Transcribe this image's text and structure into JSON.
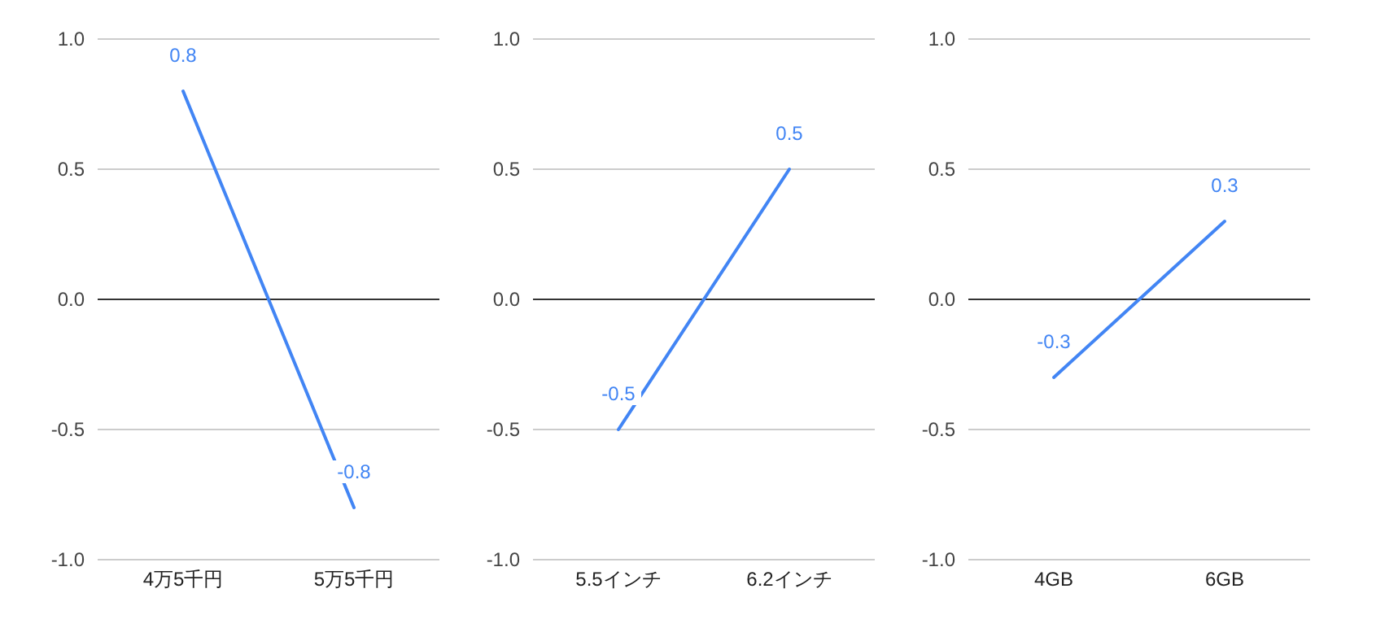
{
  "chart_data": [
    {
      "type": "line",
      "categories": [
        "4万5千円",
        "5万5千円"
      ],
      "series": [
        {
          "color": "#4285f4",
          "values": [
            0.8,
            -0.8
          ]
        }
      ],
      "ylim": [
        -1,
        1
      ],
      "yticks": [
        {
          "value": 1,
          "label": "1.0"
        },
        {
          "value": 0.5,
          "label": "0.5"
        },
        {
          "value": 0,
          "label": "0.0"
        },
        {
          "value": -0.5,
          "label": "-0.5"
        },
        {
          "value": -1,
          "label": "-1.0"
        }
      ],
      "grid": "y",
      "data_labels": true,
      "ref_lines": [
        {
          "axis": "y",
          "value": 0,
          "color": "#333333"
        }
      ]
    },
    {
      "type": "line",
      "categories": [
        "5.5インチ",
        "6.2インチ"
      ],
      "series": [
        {
          "color": "#4285f4",
          "values": [
            -0.5,
            0.5
          ]
        }
      ],
      "ylim": [
        -1,
        1
      ],
      "yticks": [
        {
          "value": 1,
          "label": "1.0"
        },
        {
          "value": 0.5,
          "label": "0.5"
        },
        {
          "value": 0,
          "label": "0.0"
        },
        {
          "value": -0.5,
          "label": "-0.5"
        },
        {
          "value": -1,
          "label": "-1.0"
        }
      ],
      "grid": "y",
      "data_labels": true,
      "ref_lines": [
        {
          "axis": "y",
          "value": 0,
          "color": "#333333"
        }
      ]
    },
    {
      "type": "line",
      "categories": [
        "4GB",
        "6GB"
      ],
      "series": [
        {
          "color": "#4285f4",
          "values": [
            -0.3,
            0.3
          ]
        }
      ],
      "ylim": [
        -1,
        1
      ],
      "yticks": [
        {
          "value": 1,
          "label": "1.0"
        },
        {
          "value": 0.5,
          "label": "0.5"
        },
        {
          "value": 0,
          "label": "0.0"
        },
        {
          "value": -0.5,
          "label": "-0.5"
        },
        {
          "value": -1,
          "label": "-1.0"
        }
      ],
      "grid": "y",
      "data_labels": true,
      "ref_lines": [
        {
          "axis": "y",
          "value": 0,
          "color": "#333333"
        }
      ]
    }
  ]
}
